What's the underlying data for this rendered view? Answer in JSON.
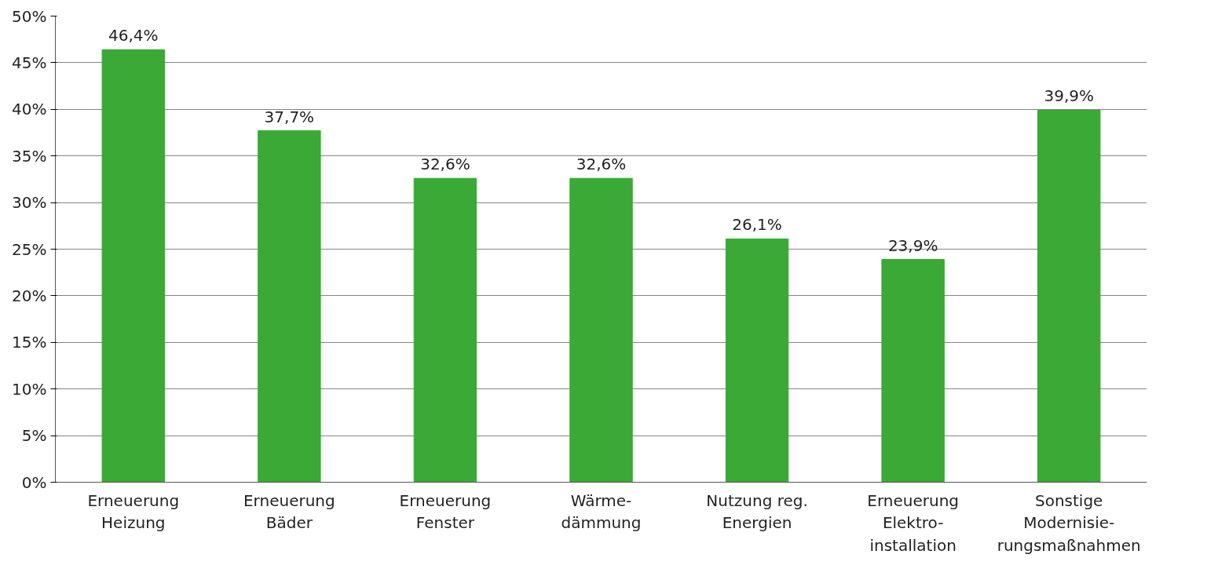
{
  "chart_data": {
    "type": "bar",
    "categories": [
      "Erneuerung\nHeizung",
      "Erneuerung\nBäder",
      "Erneuerung\nFenster",
      "Wärme-\ndämmung",
      "Nutzung reg.\nEnergien",
      "Erneuerung\nElektro-\ninstallation",
      "Sonstige\nModernisie-\nrungsmaßnahmen"
    ],
    "values": [
      46.4,
      37.7,
      32.6,
      32.6,
      26.1,
      23.9,
      39.9
    ],
    "value_labels": [
      "46,4%",
      "37,7%",
      "32,6%",
      "32,6%",
      "26,1%",
      "23,9%",
      "39,9%"
    ],
    "color": "#3aa935",
    "ylim": [
      0,
      50
    ],
    "yticks": [
      {
        "value": 0,
        "label": "0%"
      },
      {
        "value": 5,
        "label": "5%"
      },
      {
        "value": 10,
        "label": "10%"
      },
      {
        "value": 15,
        "label": "15%"
      },
      {
        "value": 20,
        "label": "20%"
      },
      {
        "value": 25,
        "label": "25%"
      },
      {
        "value": 30,
        "label": "30%"
      },
      {
        "value": 35,
        "label": "35%"
      },
      {
        "value": 40,
        "label": "40%"
      },
      {
        "value": 45,
        "label": "45%"
      },
      {
        "value": 50,
        "label": "50%"
      }
    ],
    "grid": "y"
  }
}
